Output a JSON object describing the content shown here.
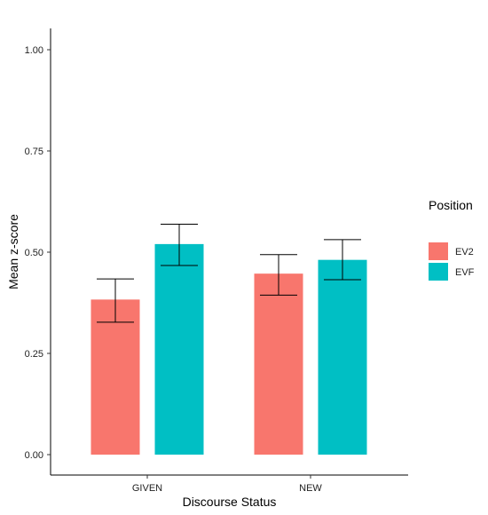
{
  "chart_data": {
    "type": "bar",
    "xlabel": "Discourse Status",
    "ylabel": "Mean z-score",
    "categories": [
      "GIVEN",
      "NEW"
    ],
    "ylim": [
      0,
      1.0
    ],
    "yticks": [
      "0.00",
      "0.25",
      "0.50",
      "0.75",
      "1.00"
    ],
    "ytick_values": [
      0,
      0.25,
      0.5,
      0.75,
      1.0
    ],
    "legend": {
      "title": "Position",
      "placement": "right"
    },
    "series": [
      {
        "name": "EV2",
        "color": "#F8766D",
        "values": [
          0.383,
          0.447
        ],
        "error_low": [
          0.327,
          0.394
        ],
        "error_high": [
          0.434,
          0.494
        ]
      },
      {
        "name": "EVF",
        "color": "#00BFC4",
        "values": [
          0.52,
          0.481
        ],
        "error_low": [
          0.467,
          0.432
        ],
        "error_high": [
          0.569,
          0.531
        ]
      }
    ],
    "grid": false
  }
}
